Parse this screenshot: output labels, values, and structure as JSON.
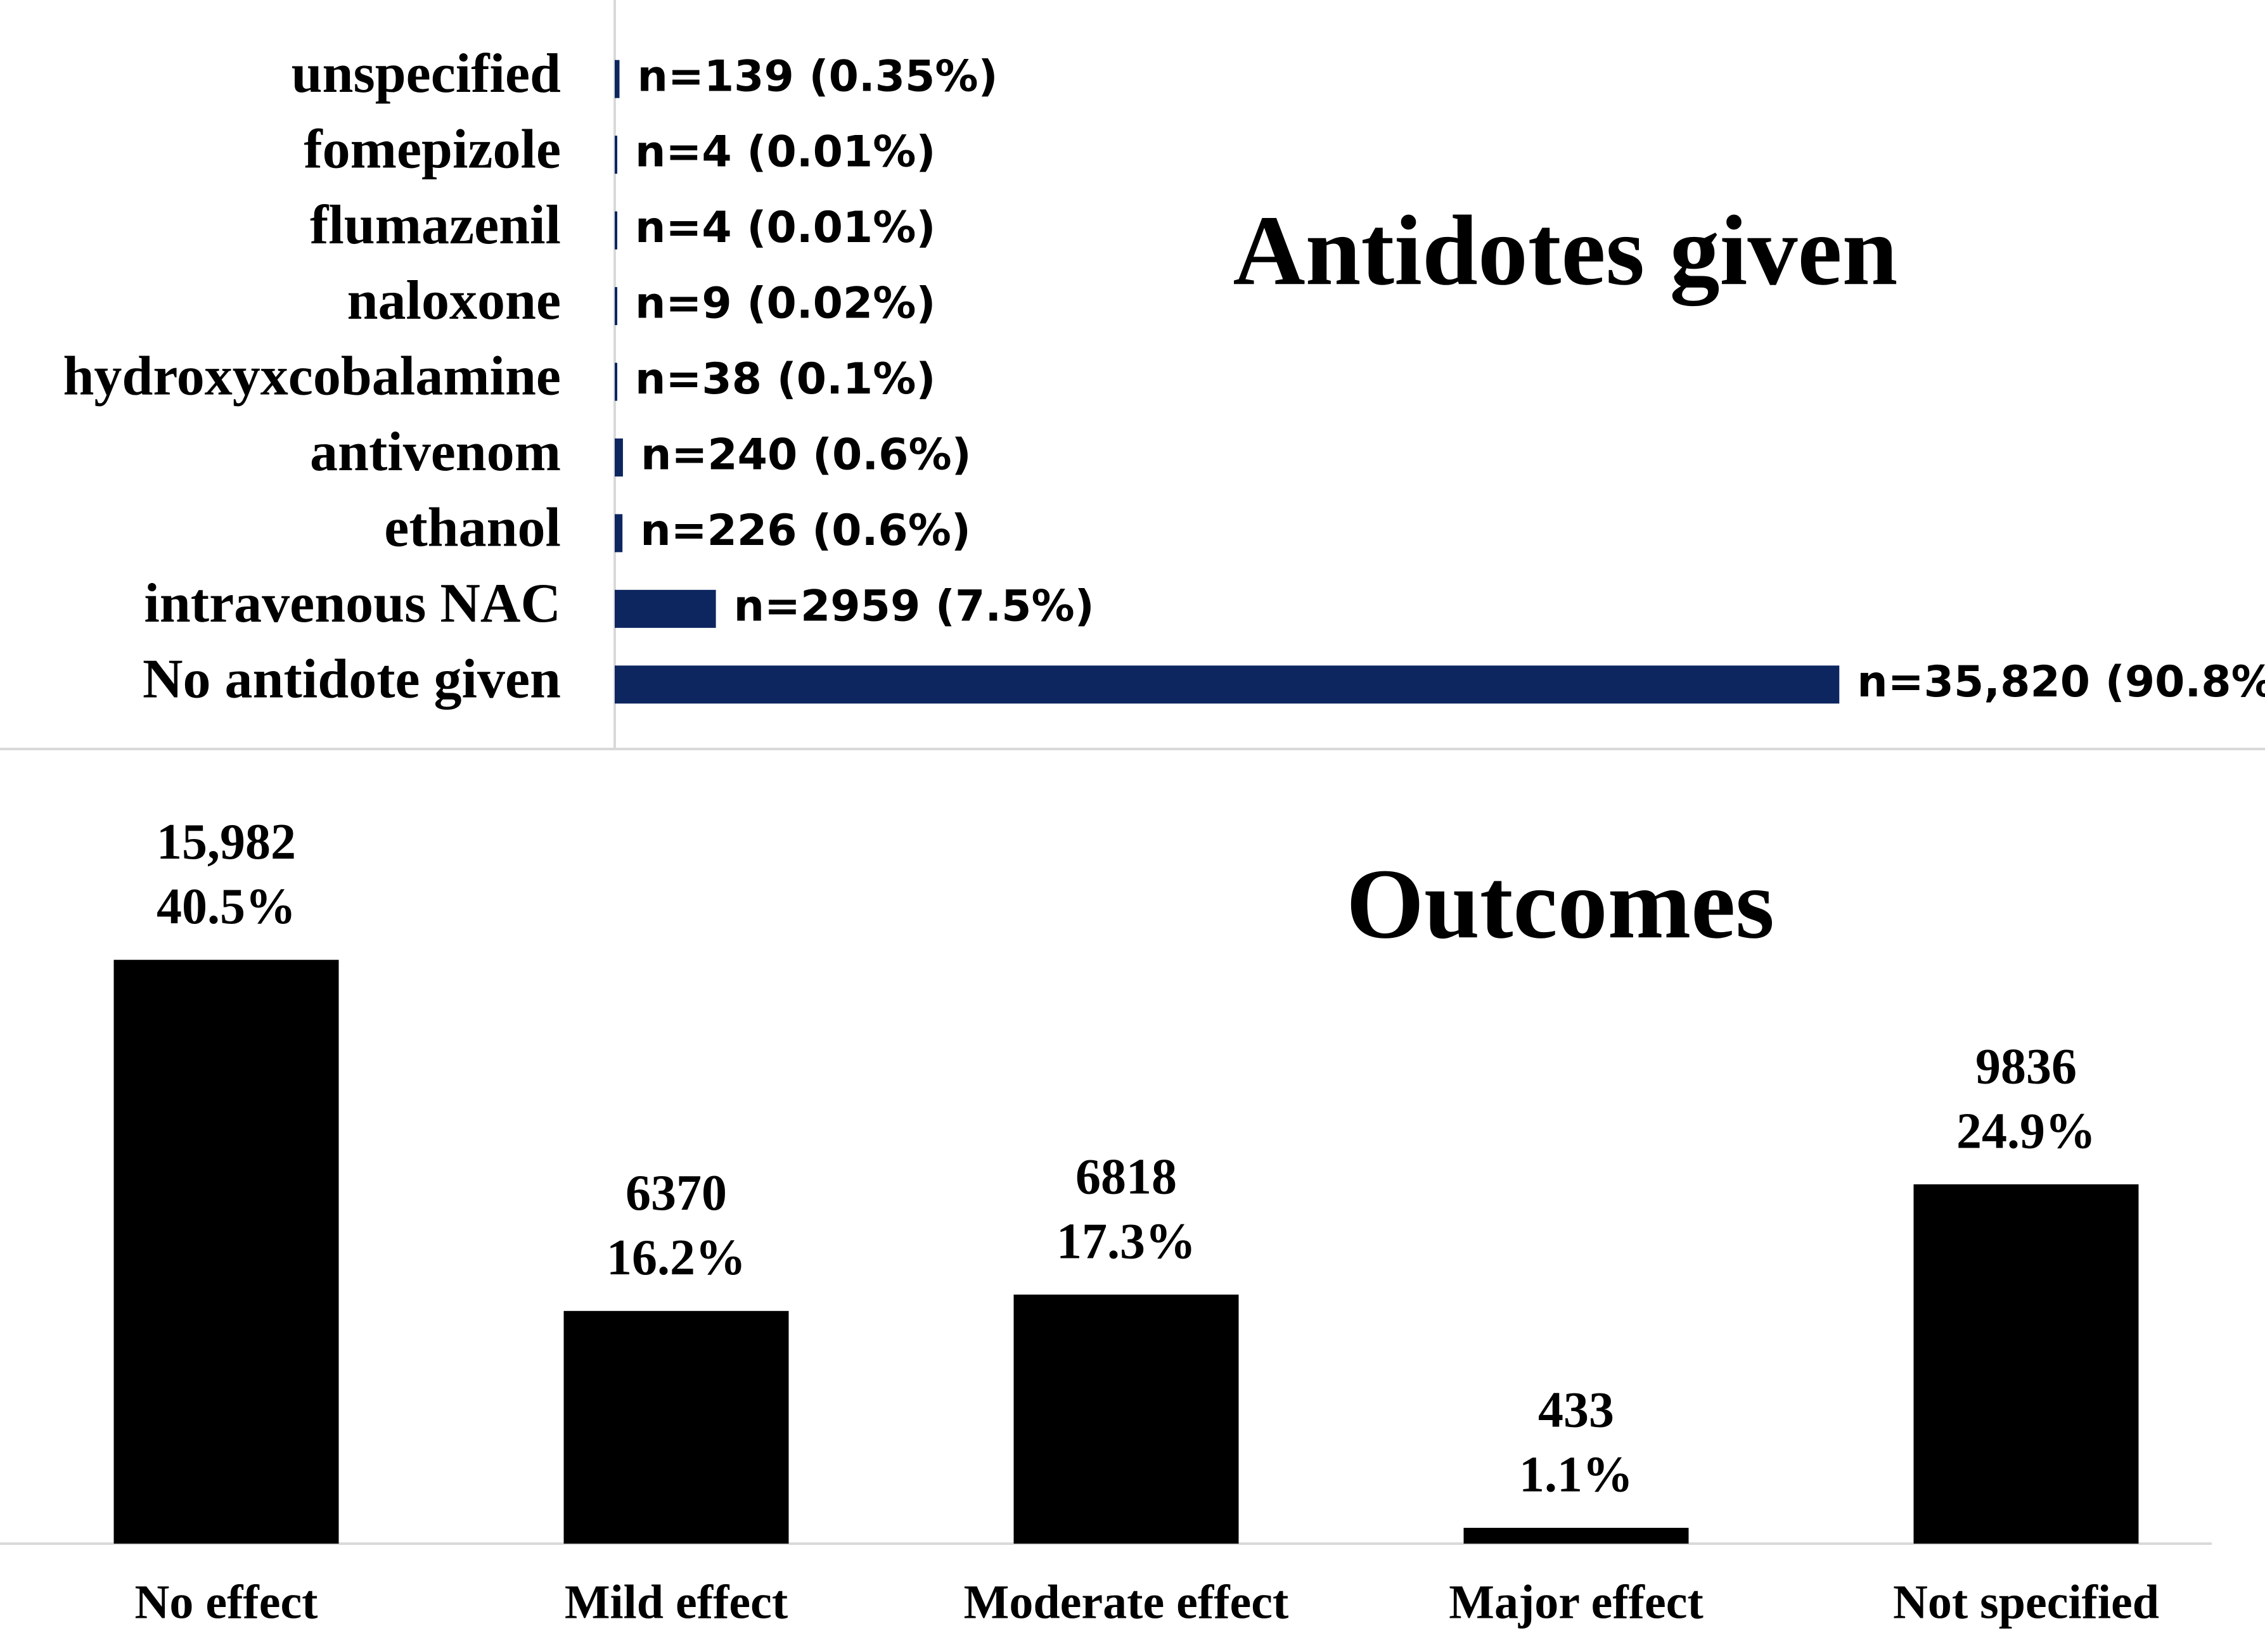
{
  "chart_data": [
    {
      "type": "bar",
      "orientation": "horizontal",
      "title": "Antidotes given",
      "categories": [
        "unspecified",
        "fomepizole",
        "flumazenil",
        "naloxone",
        "hydroxyxcobalamine",
        "antivenom",
        "ethanol",
        "intravenous NAC",
        "No antidote given"
      ],
      "values": [
        139,
        4,
        4,
        9,
        38,
        240,
        226,
        2959,
        35820
      ],
      "data_labels": [
        "n=139 (0.35%)",
        "n=4 (0.01%)",
        "n=4 (0.01%)",
        "n=9 (0.02%)",
        "n=38 (0.1%)",
        "n=240 (0.6%)",
        "n=226 (0.6%)",
        "n=2959 (7.5%)",
        "n=35,820 (90.8%)"
      ],
      "xlim": [
        0,
        36000
      ],
      "grid": false,
      "bar_color": "#0d2660"
    },
    {
      "type": "bar",
      "orientation": "vertical",
      "title": "Outcomes",
      "categories": [
        "No effect",
        "Mild effect",
        "Moderate effect",
        "Major effect",
        "Not specified"
      ],
      "values": [
        15982,
        6370,
        6818,
        433,
        9836
      ],
      "percentages": [
        "40.5%",
        "16.2%",
        "17.3%",
        "1.1%",
        "24.9%"
      ],
      "value_labels": [
        "15,982",
        "6370",
        "6818",
        "433",
        "9836"
      ],
      "ylim": [
        0,
        17000
      ],
      "grid": false,
      "bar_color": "#000000"
    }
  ]
}
